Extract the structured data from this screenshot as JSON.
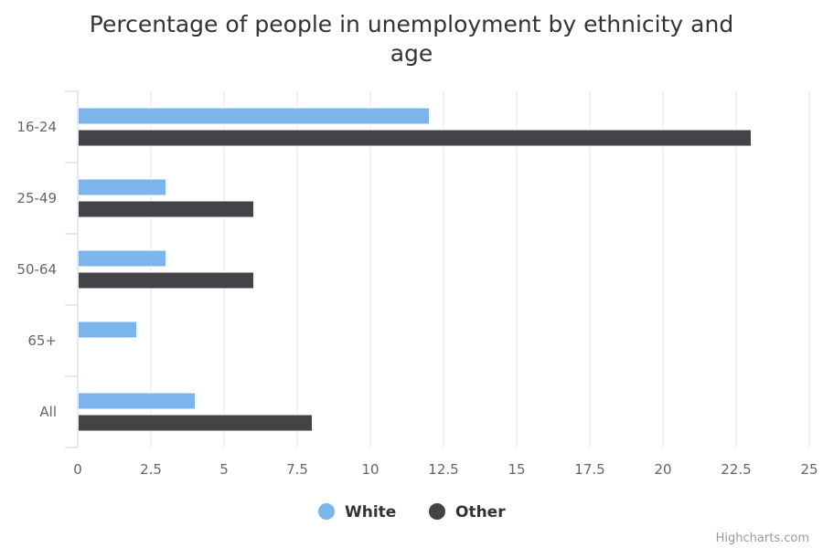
{
  "chart_data": {
    "type": "bar",
    "orientation": "horizontal",
    "title_line1": "Percentage of people in unemployment by ethnicity and",
    "title_line2": "age",
    "categories": [
      "16-24",
      "25-49",
      "50-64",
      "65+",
      "All"
    ],
    "series": [
      {
        "name": "White",
        "color": "#7cb5ec",
        "values": [
          12,
          3,
          3,
          2,
          4
        ]
      },
      {
        "name": "Other",
        "color": "#434348",
        "values": [
          23,
          6,
          6,
          null,
          8
        ]
      }
    ],
    "xlim": [
      0,
      25
    ],
    "x_ticks": [
      "0",
      "2.5",
      "5",
      "7.5",
      "10",
      "12.5",
      "15",
      "17.5",
      "20",
      "22.5",
      "25"
    ],
    "grid": true,
    "legend_position": "bottom-center"
  },
  "credits": "Highcharts.com"
}
